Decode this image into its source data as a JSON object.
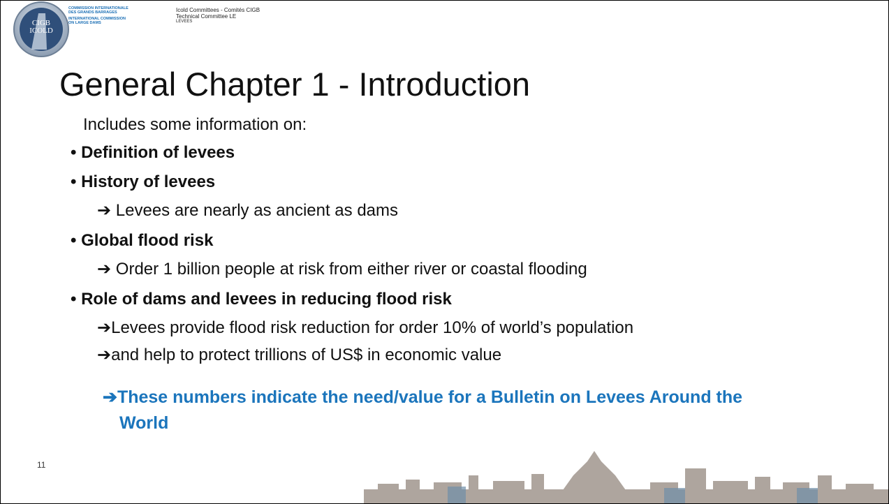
{
  "header": {
    "logo": "CIGB ICOLD",
    "org_lines": [
      "COMMISSION INTERNATIONALE",
      "DES GRANDS BARRAGES",
      "INTERNATIONAL COMMISSION",
      "ON LARGE DAMS"
    ],
    "committee_lines": [
      "Icold Committees - Comités CIGB",
      "Technical Committee LE",
      "LEVEES"
    ]
  },
  "title": "General Chapter 1 - Introduction",
  "intro": "Includes some information on:",
  "bullets": [
    {
      "text": "• Definition of levees",
      "subs": []
    },
    {
      "text": "• History of levees",
      "subs": [
        "➔ Levees are nearly as ancient as dams"
      ]
    },
    {
      "text": "• Global flood risk",
      "subs": [
        "➔ Order 1 billion people at risk from either river or coastal flooding"
      ]
    },
    {
      "text": "• Role of dams and levees in reducing flood risk",
      "subs": [
        "➔Levees provide flood risk reduction for order 10% of world’s population",
        "➔and help to protect trillions of US$ in economic value"
      ]
    }
  ],
  "conclusion": "➔These numbers indicate the need/value for a Bulletin on Levees Around the World",
  "page_number": "11"
}
